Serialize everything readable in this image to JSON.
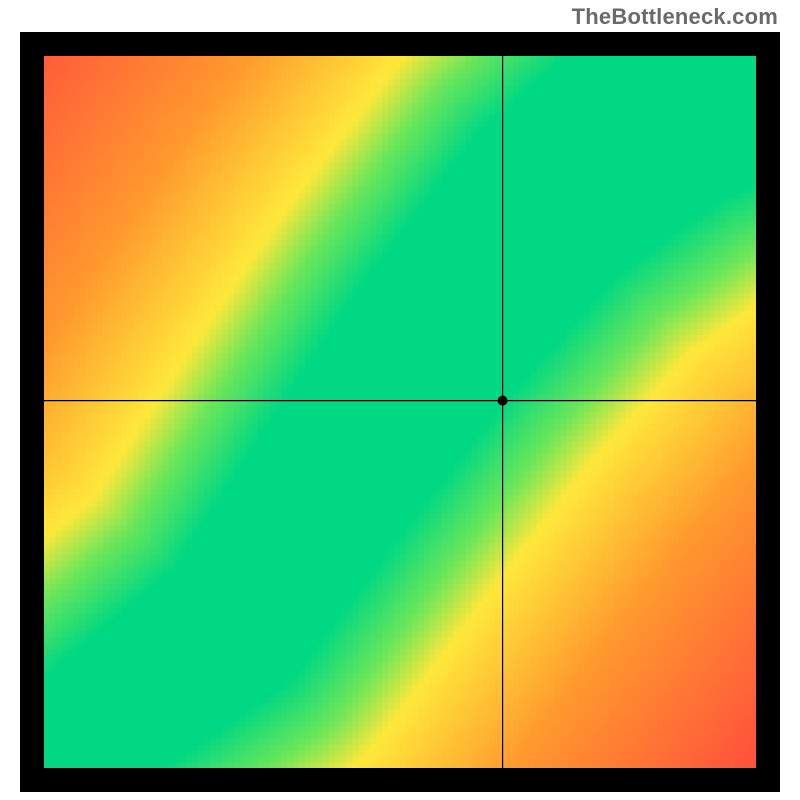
{
  "watermark_text": "TheBottleneck.com",
  "watermark_color": "#6a6a6a",
  "watermark_fontsize": 22,
  "canvas_size": 760,
  "outer_size": 800,
  "heatmap": {
    "type": "bottleneck-gradient",
    "resolution": 128,
    "border_color": "#000000",
    "border_width": 24,
    "ideal_curve": {
      "description": "green ridge — ideal GPU:CPU balance line, slightly super-linear with S bend",
      "breakpoints": [
        {
          "x": 0.0,
          "y": 0.0
        },
        {
          "x": 0.12,
          "y": 0.1
        },
        {
          "x": 0.28,
          "y": 0.22
        },
        {
          "x": 0.42,
          "y": 0.42
        },
        {
          "x": 0.55,
          "y": 0.6
        },
        {
          "x": 0.7,
          "y": 0.78
        },
        {
          "x": 0.85,
          "y": 0.9
        },
        {
          "x": 1.0,
          "y": 0.98
        }
      ],
      "ridge_half_width_start": 0.015,
      "ridge_half_width_end": 0.075
    },
    "colors": {
      "green": "#00d884",
      "yellow": "#ffe83b",
      "orange": "#ff9a2e",
      "red": "#ff2c4b"
    },
    "color_stops_distance_norm": [
      {
        "d": 0.0,
        "c": "#00d884"
      },
      {
        "d": 0.09,
        "c": "#6be75a"
      },
      {
        "d": 0.16,
        "c": "#ffe83b"
      },
      {
        "d": 0.34,
        "c": "#ff9a2e"
      },
      {
        "d": 0.65,
        "c": "#ff4a3e"
      },
      {
        "d": 1.0,
        "c": "#ff2c4b"
      }
    ],
    "corner_tint": {
      "bottom_left_pull_to_green": 0.08
    }
  },
  "crosshair": {
    "xn": 0.635,
    "yn": 0.515,
    "line_color": "#000000",
    "line_width": 1.2,
    "dot_radius": 5,
    "dot_color": "#000000"
  }
}
